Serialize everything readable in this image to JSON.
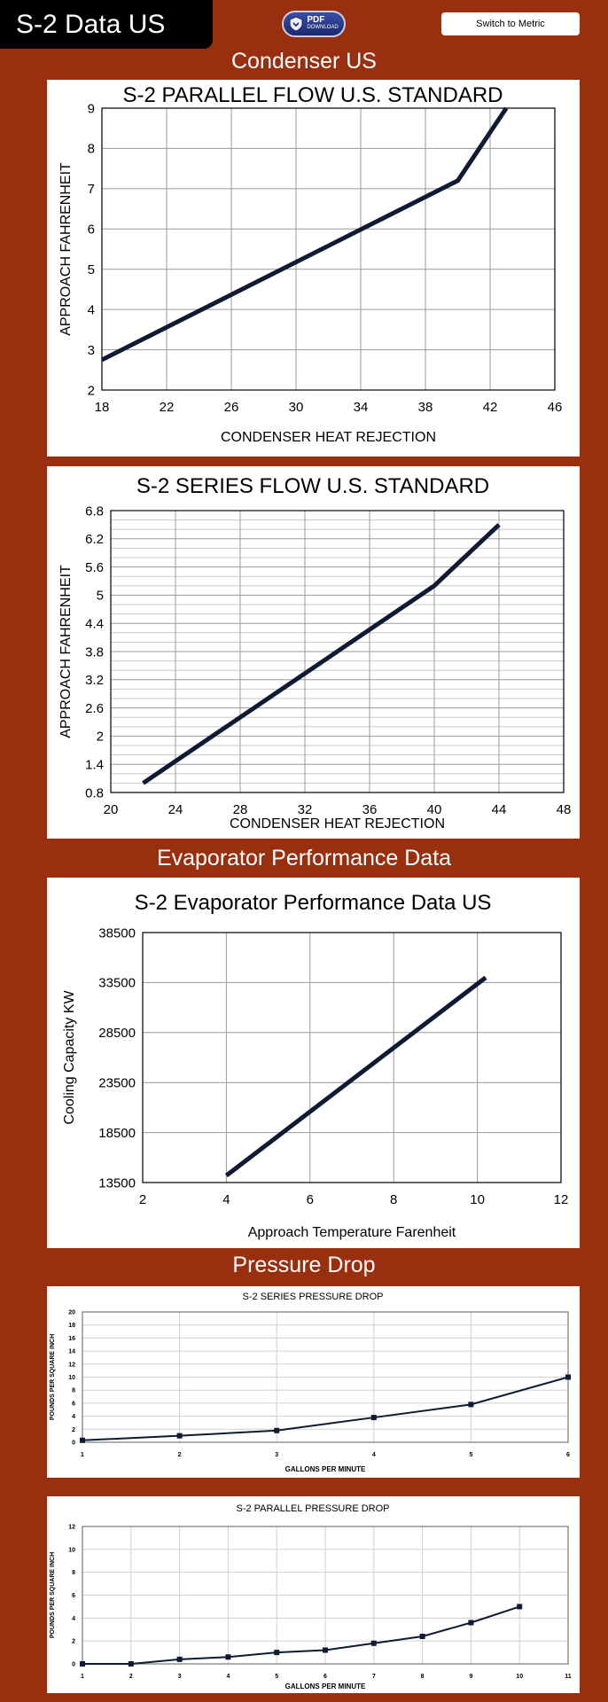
{
  "header": {
    "title": "S-2 Data US",
    "pdf_main": "PDF",
    "pdf_sub": "DOWNLOAD",
    "switch_label": "Switch to Metric"
  },
  "sections": {
    "condenser": "Condenser US",
    "evaporator": "Evaporator Performance Data",
    "pressure": "Pressure Drop"
  },
  "chart_data": [
    {
      "type": "line",
      "title": "S-2 PARALLEL FLOW U.S. STANDARD",
      "xlabel": "CONDENSER HEAT REJECTION",
      "ylabel": "APPROACH FAHRENHEIT",
      "xlim": [
        18,
        46
      ],
      "ylim": [
        2,
        9
      ],
      "xticks": [
        "18",
        "22",
        "26",
        "30",
        "34",
        "38",
        "42",
        "46"
      ],
      "yticks": [
        "2",
        "3",
        "4",
        "5",
        "6",
        "7",
        "8",
        "9"
      ],
      "grid": true,
      "series": [
        {
          "x": [
            18,
            40,
            43
          ],
          "y": [
            2.75,
            7.2,
            9
          ]
        }
      ]
    },
    {
      "type": "line",
      "title": "S-2 SERIES FLOW U.S. STANDARD",
      "xlabel": "CONDENSER HEAT REJECTION",
      "ylabel": "APPROACH FAHRENHEIT",
      "xlim": [
        20,
        48
      ],
      "ylim": [
        0.8,
        6.8
      ],
      "xticks": [
        "20",
        "24",
        "28",
        "32",
        "36",
        "40",
        "44",
        "48"
      ],
      "yticks": [
        "0.8",
        "1.4",
        "2",
        "2.6",
        "3.2",
        "3.8",
        "4.4",
        "5",
        "5.6",
        "6.2",
        "6.8"
      ],
      "grid": true,
      "series": [
        {
          "x": [
            22,
            40,
            44
          ],
          "y": [
            1,
            5.2,
            6.5
          ]
        }
      ]
    },
    {
      "type": "line",
      "title": "S-2 Evaporator Performance Data US",
      "xlabel": "Approach Temperature Farenheit",
      "ylabel": "Cooling Capacity KW",
      "xlim": [
        2,
        12
      ],
      "ylim": [
        13500,
        38500
      ],
      "xticks": [
        "2",
        "4",
        "6",
        "8",
        "10",
        "12"
      ],
      "yticks": [
        "13500",
        "18500",
        "23500",
        "28500",
        "33500",
        "38500"
      ],
      "grid": true,
      "series": [
        {
          "x": [
            4,
            10.2
          ],
          "y": [
            14200,
            34000
          ]
        }
      ]
    },
    {
      "type": "line",
      "title": "S-2 SERIES PRESSURE DROP",
      "xlabel": "GALLONS PER MINUTE",
      "ylabel": "POUNDS PER SQUARE INCH",
      "xlim": [
        1,
        6
      ],
      "ylim": [
        0,
        20
      ],
      "xticks": [
        "1",
        "2",
        "3",
        "4",
        "5",
        "6"
      ],
      "yticks": [
        "0",
        "2",
        "4",
        "6",
        "8",
        "10",
        "12",
        "14",
        "16",
        "18",
        "20"
      ],
      "grid": true,
      "markers": true,
      "series": [
        {
          "x": [
            1,
            2,
            3,
            4,
            5,
            6
          ],
          "y": [
            0.3,
            1.0,
            1.8,
            3.8,
            5.8,
            10
          ]
        }
      ]
    },
    {
      "type": "line",
      "title": "S-2 PARALLEL PRESSURE DROP",
      "xlabel": "GALLONS PER MINUTE",
      "ylabel": "POUNDS PER SQUARE INCH",
      "xlim": [
        1,
        11
      ],
      "ylim": [
        0,
        12
      ],
      "xticks": [
        "1",
        "2",
        "3",
        "4",
        "5",
        "6",
        "7",
        "8",
        "9",
        "10",
        "11"
      ],
      "yticks": [
        "0",
        "2",
        "4",
        "6",
        "8",
        "10",
        "12"
      ],
      "grid": true,
      "markers": true,
      "series": [
        {
          "x": [
            1,
            2,
            3,
            4,
            5,
            6,
            7,
            8,
            9,
            10
          ],
          "y": [
            0,
            0,
            0.4,
            0.6,
            1.0,
            1.2,
            1.8,
            2.4,
            3.6,
            5.0
          ]
        }
      ]
    }
  ]
}
